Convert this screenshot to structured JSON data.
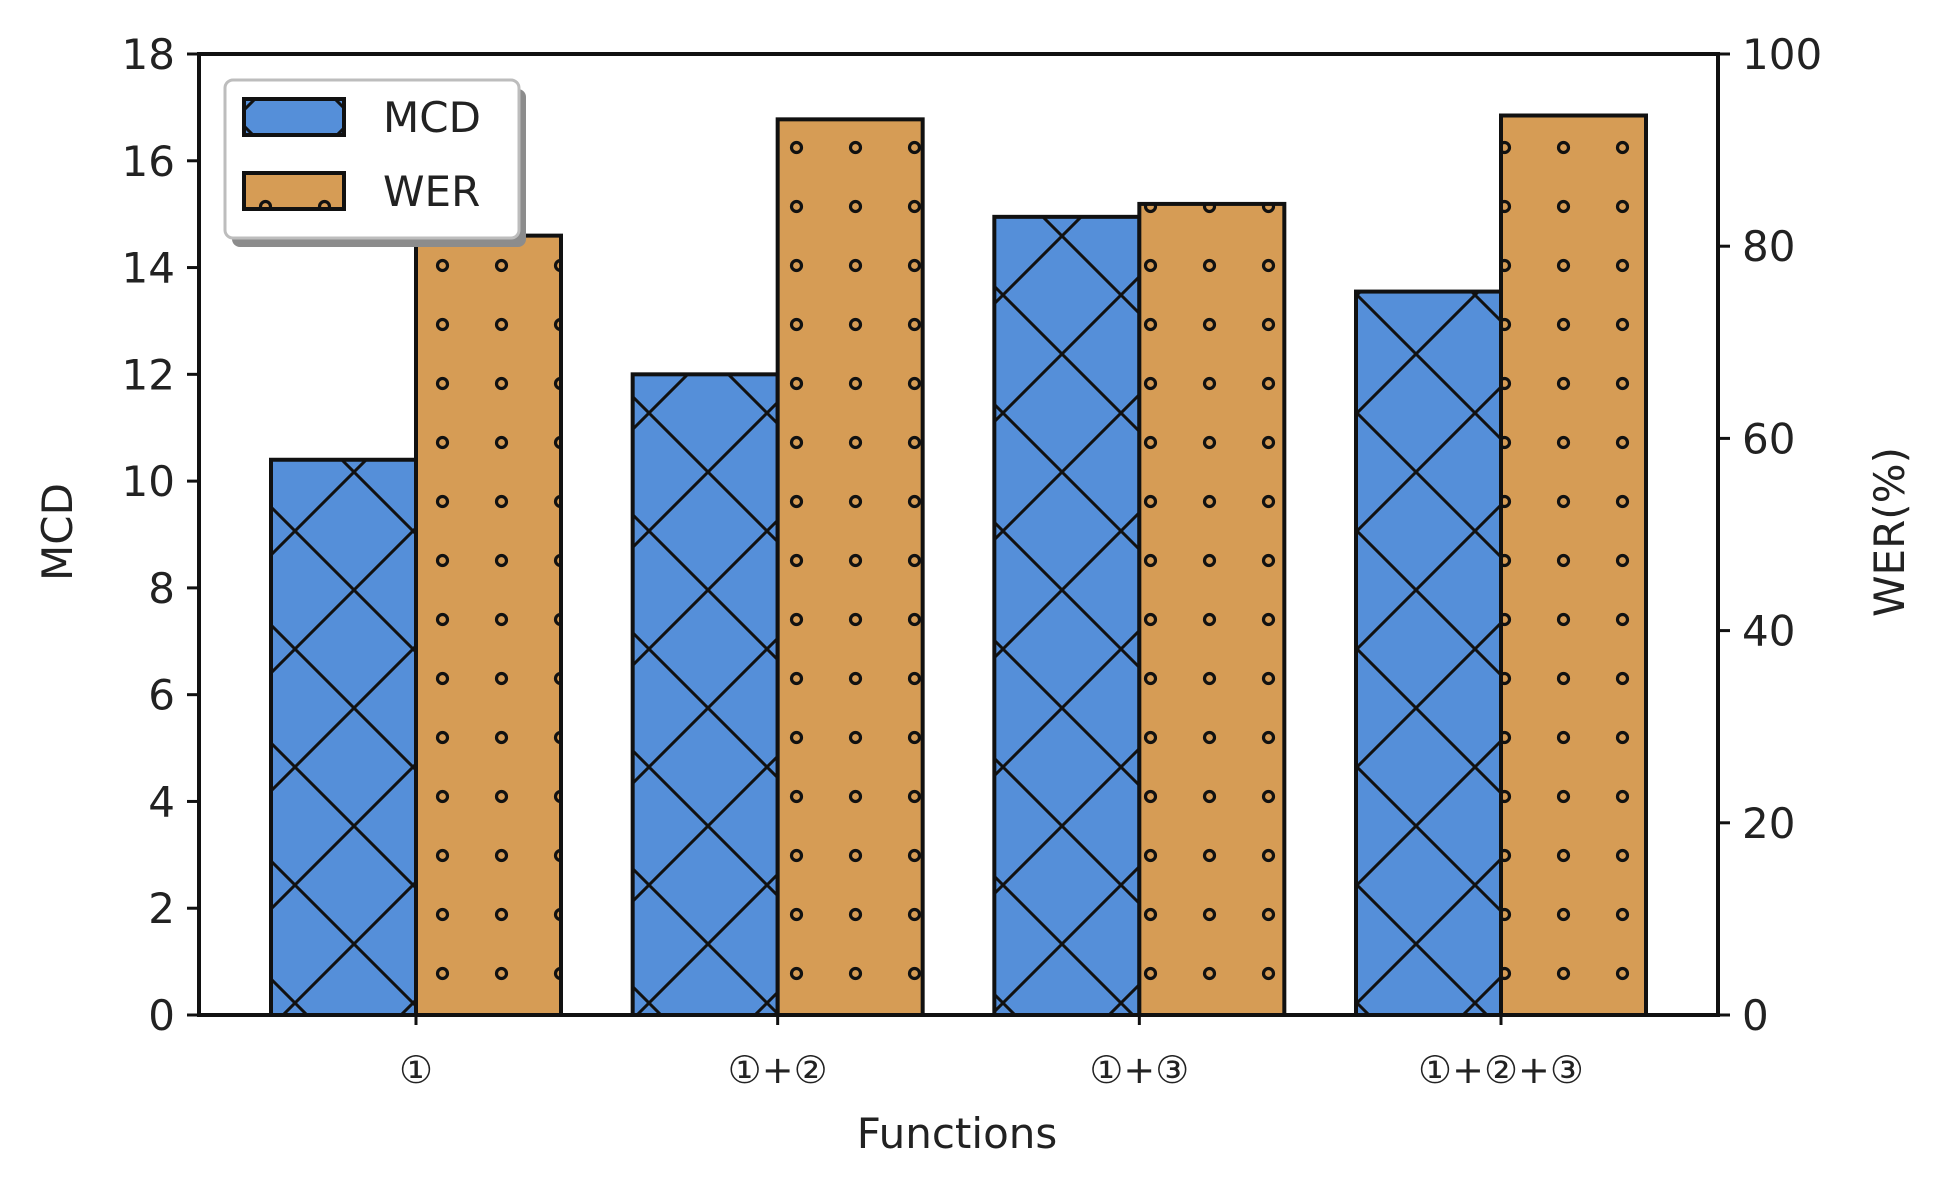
{
  "chart_data": {
    "type": "bar",
    "xlabel": "Functions",
    "categories": [
      "①",
      "①+②",
      "①+③",
      "①+②+③"
    ],
    "left_axis": {
      "label": "MCD",
      "ylim": [
        0,
        18
      ],
      "ticks": [
        "0",
        "2",
        "4",
        "6",
        "8",
        "10",
        "12",
        "14",
        "16",
        "18"
      ]
    },
    "right_axis": {
      "label": "WER(%)",
      "ylim": [
        0,
        100
      ],
      "ticks": [
        "0",
        "20",
        "40",
        "60",
        "80",
        "100"
      ]
    },
    "series": [
      {
        "name": "MCD",
        "axis": "left",
        "color": "#558fd9",
        "pattern": "crosshatch",
        "values": [
          10.4,
          12.0,
          14.95,
          13.55
        ]
      },
      {
        "name": "WER",
        "axis": "right",
        "color": "#d69c55",
        "pattern": "dots",
        "values": [
          81.1,
          93.2,
          84.4,
          93.6
        ]
      }
    ],
    "legend": {
      "position": "top-left",
      "entries": [
        "MCD",
        "WER"
      ]
    },
    "grid": false
  }
}
